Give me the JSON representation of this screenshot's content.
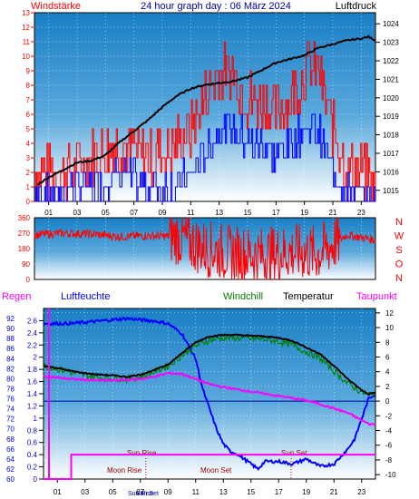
{
  "header": {
    "left_label": "Windstärke",
    "title": "24 hour graph day : 06 März 2024",
    "right_label": "Luftdruck"
  },
  "colors": {
    "bg_top": "#1e86c8",
    "bg_bottom": "#ffffff",
    "pressure": "#000000",
    "wind_gust": "#ff0000",
    "wind_avg": "#0000ff",
    "direction": "#ff0000",
    "temperature": "#000000",
    "windchill": "#008000",
    "dewpoint": "#ff00ff",
    "humidity": "#0000ff",
    "rain": "#ff00ff",
    "moon": "#ff00ff",
    "sun_label": "#a00000",
    "axis_left": "#ff0000",
    "axis_right": "#000000",
    "axis_humidity": "#0000ff"
  },
  "chart_data": [
    {
      "type": "line",
      "id": "wind_pressure",
      "title": "24 hour graph day : 06 März 2024",
      "x_ticks": [
        "01",
        "03",
        "05",
        "07",
        "09",
        "11",
        "13",
        "15",
        "17",
        "19",
        "21",
        "23"
      ],
      "x_range": [
        0,
        24
      ],
      "left_axis": {
        "label": "Windstärke",
        "ticks": [
          0,
          1,
          2,
          3,
          4,
          5,
          6,
          7,
          8,
          9,
          10,
          11,
          12,
          13
        ],
        "ylim": [
          0,
          13
        ]
      },
      "right_axis": {
        "label": "Luftdruck",
        "ticks": [
          1015,
          1016,
          1017,
          1018,
          1019,
          1020,
          1021,
          1022,
          1023,
          1024
        ],
        "ylim": [
          1014.4,
          1024.6
        ]
      },
      "series": [
        {
          "name": "Luftdruck",
          "axis": "right",
          "x": [
            0.2,
            1,
            2,
            3,
            4,
            5,
            6,
            7,
            8,
            9,
            10,
            11,
            12,
            13,
            14,
            15,
            16,
            17,
            18,
            19,
            20,
            21,
            22,
            23,
            23.5,
            24
          ],
          "y": [
            1015.3,
            1015.7,
            1016.1,
            1016.5,
            1016.6,
            1016.9,
            1017.6,
            1018.2,
            1018.8,
            1019.5,
            1020.1,
            1020.5,
            1020.7,
            1020.8,
            1020.9,
            1021.1,
            1021.5,
            1021.9,
            1022.1,
            1022.3,
            1022.7,
            1022.9,
            1023.1,
            1023.2,
            1023.3,
            1023.1
          ]
        },
        {
          "name": "wind gust",
          "axis": "left",
          "x": [
            0,
            2,
            4,
            6,
            8,
            10,
            11,
            12,
            13,
            14,
            15,
            16,
            17,
            18,
            19,
            20,
            21,
            22,
            23,
            24
          ],
          "y": [
            2,
            2,
            3,
            4,
            3,
            4,
            5,
            7,
            9,
            9,
            7,
            7,
            6,
            7,
            9,
            9,
            5,
            2,
            2,
            1
          ]
        },
        {
          "name": "wind average",
          "axis": "left",
          "x": [
            0,
            2,
            4,
            6,
            8,
            10,
            11,
            12,
            13,
            14,
            15,
            16,
            17,
            18,
            19,
            20,
            21,
            22,
            23,
            24
          ],
          "y": [
            1,
            1,
            1,
            2,
            1,
            1,
            2,
            3,
            5,
            5,
            4,
            4,
            3,
            4,
            5,
            5,
            2,
            1,
            0,
            0
          ]
        }
      ]
    },
    {
      "type": "line",
      "id": "wind_direction",
      "left_axis": {
        "ticks": [
          0,
          90,
          180,
          270,
          360
        ],
        "ylim": [
          0,
          360
        ]
      },
      "right_axis": {
        "ticks": [
          "N",
          "W",
          "S",
          "O",
          "N"
        ]
      },
      "x_range": [
        0,
        24
      ],
      "series": [
        {
          "name": "direction",
          "x": [
            0,
            2,
            4,
            6,
            8,
            10,
            12,
            14,
            16,
            18,
            20,
            22,
            24
          ],
          "y": [
            260,
            270,
            265,
            250,
            255,
            250,
            180,
            150,
            140,
            160,
            150,
            260,
            230
          ]
        }
      ]
    },
    {
      "type": "line",
      "id": "temp_hum",
      "legend": [
        "Regen",
        "Luftfeuchte",
        "Windchill",
        "Temperatur",
        "Taupunkt"
      ],
      "x_ticks": [
        "01",
        "03",
        "05",
        "07",
        "09",
        "11",
        "13",
        "15",
        "17",
        "19",
        "21",
        "23"
      ],
      "x_range": [
        0,
        24
      ],
      "rain_axis": {
        "label": "Regen",
        "ticks": [
          "0",
          "0.2",
          "0.4",
          "0.6",
          "0.8",
          "1",
          "1.2",
          "1.4",
          "1.6",
          "1.8",
          "2",
          "2.2",
          "2.4",
          "2.6"
        ],
        "ylim": [
          0,
          2.8
        ]
      },
      "humidity_axis": {
        "label": "Luftfeuchte",
        "ticks": [
          "60",
          "62",
          "64",
          "66",
          "68",
          "70",
          "72",
          "74",
          "76",
          "78",
          "80",
          "82",
          "84",
          "86",
          "88",
          "90",
          "92"
        ],
        "ylim": [
          60,
          94
        ]
      },
      "temp_axis": {
        "ticks": [
          "-10",
          "-8",
          "-6",
          "-4",
          "-2",
          "0",
          "2",
          "4",
          "6",
          "8",
          "10",
          "12"
        ],
        "ylim": [
          -10.6,
          12.6
        ]
      },
      "annotations": [
        "Sun Rise",
        "Moon Rise",
        "Sun Set",
        "Moon Set",
        "Sun Rise",
        "Sun Set",
        "Sun Set",
        "Moon Rise"
      ],
      "series": [
        {
          "name": "Temperatur",
          "x": [
            0,
            1,
            2,
            3,
            4,
            5,
            6,
            7,
            8,
            9,
            10,
            11,
            12,
            13,
            14,
            15,
            16,
            17,
            18,
            19,
            20,
            21,
            22,
            23,
            23.5,
            24
          ],
          "y": [
            4.8,
            4.5,
            4.1,
            3.8,
            3.6,
            3.5,
            3.3,
            3.6,
            4.2,
            5.0,
            6.5,
            8.0,
            8.8,
            9.0,
            9.0,
            8.9,
            8.8,
            8.6,
            8.2,
            7.3,
            6.4,
            4.8,
            3.0,
            1.5,
            0.9,
            1.2
          ]
        },
        {
          "name": "Windchill",
          "x": [
            0,
            1,
            2,
            3,
            4,
            5,
            6,
            7,
            8,
            9,
            10,
            11,
            12,
            13,
            14,
            15,
            16,
            17,
            18,
            19,
            20,
            21,
            22,
            23,
            23.5,
            24
          ],
          "y": [
            4.8,
            4.4,
            3.9,
            3.5,
            3.2,
            3.1,
            3.0,
            3.3,
            4.0,
            4.8,
            6.2,
            7.5,
            8.3,
            8.6,
            8.6,
            8.5,
            8.4,
            8.1,
            7.6,
            6.7,
            5.8,
            4.1,
            2.4,
            1.2,
            0.9,
            1.2
          ]
        },
        {
          "name": "Taupunkt",
          "x": [
            0,
            1,
            2,
            3,
            4,
            5,
            6,
            7,
            8,
            9,
            10,
            11,
            12,
            13,
            14,
            15,
            16,
            17,
            18,
            19,
            20,
            21,
            22,
            23,
            23.5,
            24
          ],
          "y": [
            3.4,
            3.2,
            3.0,
            2.9,
            2.8,
            2.8,
            2.9,
            3.0,
            3.3,
            3.8,
            3.7,
            3.0,
            2.3,
            1.9,
            1.6,
            1.3,
            1.0,
            0.7,
            0.4,
            0.1,
            -0.4,
            -1.0,
            -1.6,
            -2.6,
            -3.1,
            -3.2
          ]
        },
        {
          "name": "Luftfeuchte",
          "x": [
            0,
            2,
            4,
            6,
            8,
            9,
            10,
            11,
            11.5,
            12,
            12.5,
            13,
            13.5,
            14,
            14.5,
            15,
            15.5,
            16,
            17,
            18,
            19,
            20,
            21,
            22,
            22.5,
            23,
            23.5,
            24
          ],
          "y": [
            91,
            91,
            91.5,
            92,
            91.5,
            91,
            89,
            84,
            78,
            74,
            70,
            67,
            65.5,
            65,
            64,
            63,
            62,
            63.5,
            63.5,
            63,
            64,
            62.5,
            63,
            66,
            68,
            72,
            76,
            77
          ]
        },
        {
          "name": "Regen",
          "x": [
            0,
            1.5,
            2,
            24
          ],
          "y": [
            0,
            0,
            0.4,
            0.4
          ]
        }
      ]
    }
  ]
}
